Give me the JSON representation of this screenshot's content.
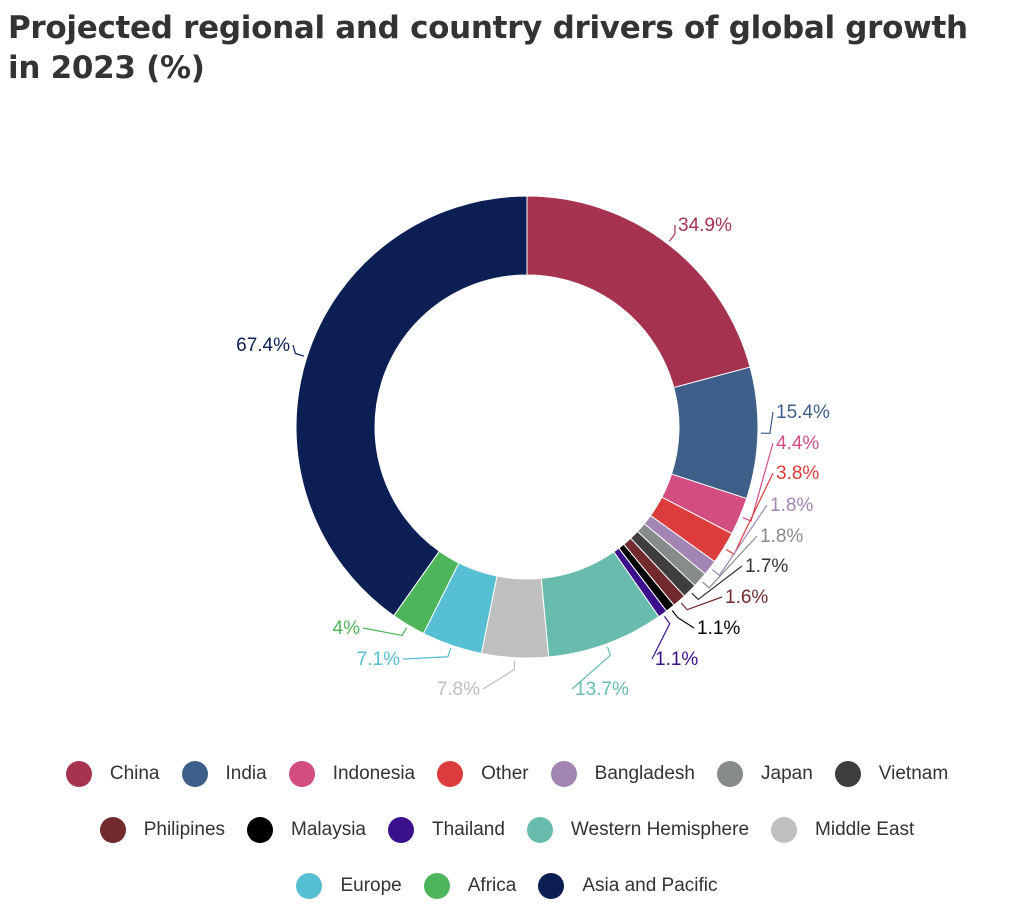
{
  "chart_data": {
    "type": "pie",
    "variant": "donut",
    "title": "Projected regional and country drivers of global growth in 2023 (%)",
    "categories": [
      "China",
      "India",
      "Indonesia",
      "Other",
      "Bangladesh",
      "Japan",
      "Vietnam",
      "Philipines",
      "Malaysia",
      "Thailand",
      "Western Hemisphere",
      "Middle East",
      "Europe",
      "Africa",
      "Asia and Pacific"
    ],
    "values": [
      34.9,
      15.4,
      4.4,
      3.8,
      1.8,
      1.8,
      1.7,
      1.6,
      1.1,
      1.1,
      13.7,
      7.8,
      7.1,
      4,
      67.4
    ],
    "labels": [
      "34.9%",
      "15.4%",
      "4.4%",
      "3.8%",
      "1.8%",
      "1.8%",
      "1.7%",
      "1.6%",
      "1.1%",
      "1.1%",
      "13.7%",
      "7.8%",
      "7.1%",
      "4%",
      "67.4%"
    ],
    "colors": [
      "#a5324f",
      "#3e5f8a",
      "#d24e80",
      "#dc3c3c",
      "#a385b4",
      "#888b8c",
      "#3f3d3e",
      "#722a2e",
      "#000000",
      "#3a0f8c",
      "#68bcad",
      "#bfbfbf",
      "#56bfd3",
      "#4fb55a",
      "#0b1f55"
    ],
    "label_colors": [
      "#a5324f",
      "#3e5f8a",
      "#d24e80",
      "#dc3c3c",
      "#a385b4",
      "#888b8c",
      "#333333",
      "#722a2e",
      "#000000",
      "#3a0f8c",
      "#68bcad",
      "#bfbfbf",
      "#56bfd3",
      "#4fb55a",
      "#0b1f55"
    ],
    "legend_position": "bottom"
  }
}
